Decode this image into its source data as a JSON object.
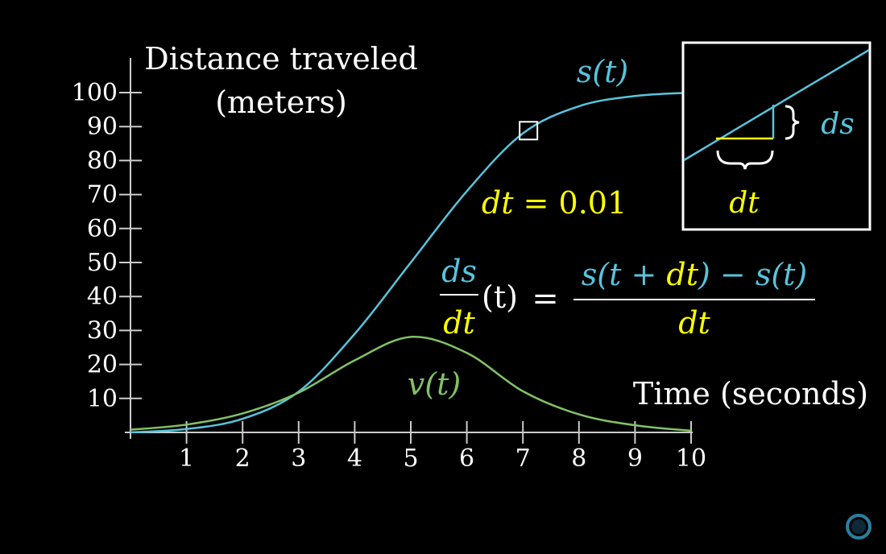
{
  "colors": {
    "background": "#000000",
    "axis": "#cccccc",
    "position": "#58c4dd",
    "velocity": "#83c167",
    "highlight": "#ffff00",
    "text": "#ffffff"
  },
  "chart_data": {
    "type": "line",
    "ylabel_line1": "Distance traveled",
    "ylabel_line2": "(meters)",
    "xlabel": "Time (seconds)",
    "xlim": [
      0,
      10
    ],
    "ylim": [
      0,
      100
    ],
    "x_ticks": [
      "1",
      "2",
      "3",
      "4",
      "5",
      "6",
      "7",
      "8",
      "9",
      "10"
    ],
    "y_ticks": [
      "10",
      "20",
      "30",
      "40",
      "50",
      "60",
      "70",
      "80",
      "90",
      "100"
    ],
    "series": [
      {
        "name": "s(t)",
        "label": "s(t)",
        "x": [
          0,
          1,
          2,
          3,
          4,
          5,
          6,
          7,
          8,
          9,
          10
        ],
        "values": [
          0,
          1,
          4,
          12,
          29,
          50,
          71,
          88,
          96,
          99,
          100
        ]
      },
      {
        "name": "v(t)",
        "label": "v(t)",
        "x": [
          0,
          1,
          2,
          3,
          4,
          5,
          6,
          7,
          8,
          9,
          10
        ],
        "values": [
          0.8,
          2.3,
          5.6,
          11.7,
          21.2,
          28.1,
          23.4,
          12.1,
          5.3,
          2.1,
          0.5
        ]
      }
    ],
    "highlight_time": 7.1
  },
  "annotations": {
    "dt_equation": {
      "lhs": "dt",
      "eq": "=",
      "rhs": "0.01"
    },
    "derivative": {
      "ds": "ds",
      "dt": "dt",
      "arg": "(t)",
      "eq": "=",
      "num_s_open": "s(t + ",
      "num_dt": "dt",
      "num_mid": ") − ",
      "num_s_t": "s(t)",
      "den": "dt"
    },
    "inset": {
      "ds_label": "ds",
      "dt_label": "dt"
    }
  }
}
